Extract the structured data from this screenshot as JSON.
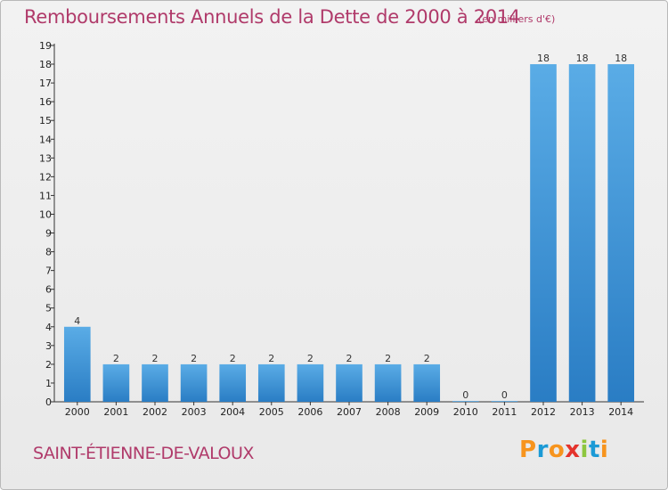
{
  "header": {
    "title": "Remboursements Annuels de la Dette de 2000 à 2014",
    "unit": "(en milliers d'€)"
  },
  "footer": {
    "commune": "SAINT-ÉTIENNE-DE-VALOUX",
    "brand": "Proxiti",
    "brand_letters": [
      {
        "char": "P",
        "color": "#f7941d"
      },
      {
        "char": "r",
        "color": "#1b9ad6"
      },
      {
        "char": "o",
        "color": "#f7941d"
      },
      {
        "char": "x",
        "color": "#e4332c"
      },
      {
        "char": "i",
        "color": "#8dc63f"
      },
      {
        "char": "t",
        "color": "#1b9ad6"
      },
      {
        "char": "i",
        "color": "#f7941d"
      }
    ]
  },
  "chart_data": {
    "type": "bar",
    "title": "Remboursements Annuels de la Dette de 2000 à 2014",
    "unit": "(en milliers d'€)",
    "categories": [
      "2000",
      "2001",
      "2002",
      "2003",
      "2004",
      "2005",
      "2006",
      "2007",
      "2008",
      "2009",
      "2010",
      "2011",
      "2012",
      "2013",
      "2014"
    ],
    "values": [
      4,
      2,
      2,
      2,
      2,
      2,
      2,
      2,
      2,
      2,
      0,
      0,
      18,
      18,
      18
    ],
    "ylim": [
      0,
      19
    ],
    "yticks": [
      0,
      1,
      2,
      3,
      4,
      5,
      6,
      7,
      8,
      9,
      10,
      11,
      12,
      13,
      14,
      15,
      16,
      17,
      18,
      19
    ],
    "grid": false,
    "bar_color_top": "#5aace6",
    "bar_color_bottom": "#2a7dc4"
  }
}
